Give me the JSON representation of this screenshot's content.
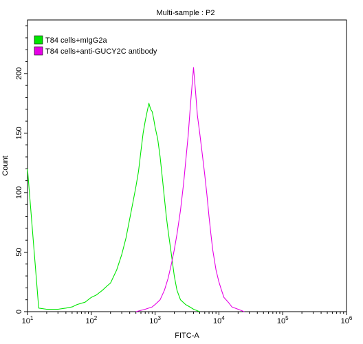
{
  "chart_data": {
    "type": "line",
    "title": "Multi-sample : P2",
    "xlabel": "FITC-A",
    "ylabel": "Count",
    "x_scale": "log",
    "xlim": [
      10,
      1000000
    ],
    "ylim": [
      0,
      245
    ],
    "x_ticks": [
      10,
      100,
      1000,
      10000,
      100000,
      1000000
    ],
    "x_tick_labels": [
      {
        "base": "10",
        "exp": "1"
      },
      {
        "base": "10",
        "exp": "2"
      },
      {
        "base": "10",
        "exp": "3"
      },
      {
        "base": "10",
        "exp": "4"
      },
      {
        "base": "10",
        "exp": "5"
      },
      {
        "base": "10",
        "exp": "6"
      }
    ],
    "y_ticks": [
      0,
      50,
      100,
      150,
      200
    ],
    "y_tick_labels": [
      "0",
      "50",
      "100",
      "150",
      "200"
    ],
    "grid": false,
    "legend_position": "top-left",
    "series": [
      {
        "name": "T84 cells+mIgG2a",
        "color": "#00e600",
        "x": [
          10,
          15,
          20,
          30,
          40,
          50,
          60,
          80,
          100,
          120,
          150,
          180,
          200,
          250,
          300,
          350,
          400,
          450,
          500,
          550,
          600,
          650,
          700,
          750,
          800,
          850,
          900,
          950,
          1000,
          1100,
          1200,
          1300,
          1400,
          1500,
          1600,
          1800,
          2000,
          2200,
          2500,
          3000,
          3500,
          4000,
          5000
        ],
        "y": [
          120,
          3,
          2,
          2,
          3,
          4,
          6,
          8,
          12,
          14,
          18,
          22,
          24,
          35,
          48,
          62,
          78,
          92,
          105,
          118,
          135,
          150,
          160,
          168,
          175,
          170,
          168,
          162,
          155,
          145,
          130,
          112,
          95,
          80,
          68,
          48,
          30,
          18,
          10,
          6,
          4,
          2,
          0
        ]
      },
      {
        "name": "T84 cells+anti-GUCY2C antibody",
        "color": "#e600e6",
        "x": [
          500,
          700,
          900,
          1000,
          1200,
          1400,
          1600,
          1800,
          2000,
          2200,
          2500,
          2800,
          3000,
          3300,
          3600,
          4000,
          4300,
          4600,
          5000,
          5500,
          6000,
          6500,
          7000,
          7500,
          8000,
          9000,
          10000,
          11000,
          12000,
          14000,
          16000,
          20000,
          25000
        ],
        "y": [
          0,
          2,
          4,
          6,
          10,
          18,
          28,
          40,
          52,
          65,
          85,
          108,
          125,
          148,
          175,
          205,
          185,
          165,
          150,
          132,
          115,
          98,
          80,
          65,
          52,
          35,
          25,
          18,
          12,
          8,
          4,
          2,
          0
        ]
      }
    ]
  }
}
